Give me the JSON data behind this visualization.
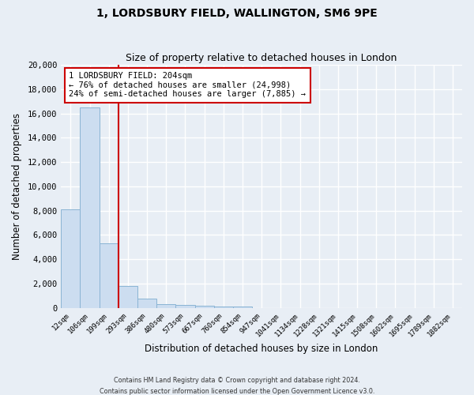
{
  "title": "1, LORDSBURY FIELD, WALLINGTON, SM6 9PE",
  "subtitle": "Size of property relative to detached houses in London",
  "xlabel": "Distribution of detached houses by size in London",
  "ylabel": "Number of detached properties",
  "bar_labels": [
    "12sqm",
    "106sqm",
    "199sqm",
    "293sqm",
    "386sqm",
    "480sqm",
    "573sqm",
    "667sqm",
    "760sqm",
    "854sqm",
    "947sqm",
    "1041sqm",
    "1134sqm",
    "1228sqm",
    "1321sqm",
    "1415sqm",
    "1508sqm",
    "1602sqm",
    "1695sqm",
    "1789sqm",
    "1882sqm"
  ],
  "bar_values": [
    8100,
    16500,
    5300,
    1800,
    750,
    300,
    230,
    150,
    130,
    120,
    0,
    0,
    0,
    0,
    0,
    0,
    0,
    0,
    0,
    0,
    0
  ],
  "bar_color": "#ccddf0",
  "bar_edge_color": "#8ab4d4",
  "property_line_color": "#cc0000",
  "ylim": [
    0,
    20000
  ],
  "yticks": [
    0,
    2000,
    4000,
    6000,
    8000,
    10000,
    12000,
    14000,
    16000,
    18000,
    20000
  ],
  "annotation_title": "1 LORDSBURY FIELD: 204sqm",
  "annotation_line1": "← 76% of detached houses are smaller (24,998)",
  "annotation_line2": "24% of semi-detached houses are larger (7,885) →",
  "annotation_box_color": "#ffffff",
  "annotation_box_edge": "#cc0000",
  "footer1": "Contains HM Land Registry data © Crown copyright and database right 2024.",
  "footer2": "Contains public sector information licensed under the Open Government Licence v3.0.",
  "background_color": "#e8eef5",
  "plot_bg_color": "#e8eef5",
  "grid_color": "#ffffff",
  "figsize": [
    6.0,
    5.0
  ],
  "dpi": 100
}
